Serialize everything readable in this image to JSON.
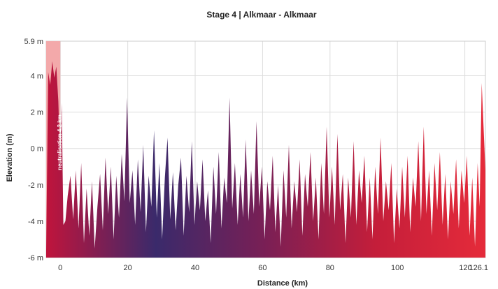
{
  "chart_data": {
    "type": "area",
    "title": "Stage 4 | Alkmaar - Alkmaar",
    "xlabel": "Distance (km)",
    "ylabel": "Elevation (m)",
    "xlim": [
      -4.2,
      126.1
    ],
    "ylim": [
      -6,
      5.9
    ],
    "x_ticks": [
      {
        "value": 0,
        "label": "0"
      },
      {
        "value": 20,
        "label": "20"
      },
      {
        "value": 40,
        "label": "40"
      },
      {
        "value": 60,
        "label": "60"
      },
      {
        "value": 80,
        "label": "80"
      },
      {
        "value": 100,
        "label": "100"
      },
      {
        "value": 120,
        "label": "120"
      },
      {
        "value": 126.1,
        "label": "126.1"
      }
    ],
    "y_ticks": [
      {
        "value": -6,
        "label": "-6 m"
      },
      {
        "value": -4,
        "label": "-4 m"
      },
      {
        "value": -2,
        "label": "-2 m"
      },
      {
        "value": 0,
        "label": "0 m"
      },
      {
        "value": 2,
        "label": "2 m"
      },
      {
        "value": 4,
        "label": "4 m"
      },
      {
        "value": 5.9,
        "label": "5.9 m"
      }
    ],
    "grid": true,
    "neutral_zone": {
      "x_start": -4.2,
      "x_end": 0,
      "label": "neutralisation 4.2 km"
    },
    "gradient_colors": [
      "#c0143c",
      "#3a2a6b",
      "#7a1f55",
      "#c41e3a",
      "#e52b3a"
    ],
    "neutral_color": "#f3a9aa",
    "profile": [
      [
        -4.2,
        -5.6
      ],
      [
        -3.6,
        4.2
      ],
      [
        -3.0,
        3.5
      ],
      [
        -2.4,
        4.8
      ],
      [
        -1.8,
        3.9
      ],
      [
        -1.2,
        4.5
      ],
      [
        -0.6,
        2.6
      ],
      [
        0.0,
        -1.0
      ],
      [
        0.4,
        2.5
      ],
      [
        0.9,
        -4.2
      ],
      [
        1.5,
        -4.0
      ],
      [
        2.2,
        -2.6
      ],
      [
        3.0,
        -1.5
      ],
      [
        3.8,
        -3.9
      ],
      [
        4.6,
        -1.2
      ],
      [
        5.4,
        -4.4
      ],
      [
        6.2,
        -0.8
      ],
      [
        7.0,
        -5.2
      ],
      [
        7.8,
        -2.2
      ],
      [
        8.6,
        -4.8
      ],
      [
        9.4,
        -1.8
      ],
      [
        10.2,
        -5.5
      ],
      [
        11.0,
        -3.2
      ],
      [
        11.8,
        -1.4
      ],
      [
        12.6,
        -4.5
      ],
      [
        13.4,
        -0.5
      ],
      [
        14.2,
        -3.6
      ],
      [
        15.0,
        -1.0
      ],
      [
        15.8,
        -5.0
      ],
      [
        16.6,
        -1.5
      ],
      [
        17.4,
        -3.8
      ],
      [
        18.2,
        -0.3
      ],
      [
        19.0,
        -2.9
      ],
      [
        19.8,
        2.8
      ],
      [
        20.6,
        -3.0
      ],
      [
        21.4,
        -1.2
      ],
      [
        22.2,
        -4.2
      ],
      [
        23.0,
        -0.6
      ],
      [
        23.8,
        -3.5
      ],
      [
        24.6,
        0.2
      ],
      [
        25.4,
        -4.6
      ],
      [
        26.2,
        -1.5
      ],
      [
        27.0,
        -3.2
      ],
      [
        27.8,
        1.0
      ],
      [
        28.6,
        -3.8
      ],
      [
        29.4,
        -0.8
      ],
      [
        30.2,
        -5.0
      ],
      [
        31.0,
        -1.6
      ],
      [
        31.8,
        0.6
      ],
      [
        32.6,
        -3.9
      ],
      [
        33.4,
        -1.3
      ],
      [
        34.2,
        -4.5
      ],
      [
        35.0,
        -2.0
      ],
      [
        35.8,
        -0.5
      ],
      [
        36.6,
        -4.8
      ],
      [
        37.4,
        -1.5
      ],
      [
        38.2,
        -3.5
      ],
      [
        39.0,
        0.4
      ],
      [
        39.8,
        -4.2
      ],
      [
        40.6,
        -1.8
      ],
      [
        41.4,
        -3.4
      ],
      [
        42.2,
        -0.6
      ],
      [
        43.0,
        -4.0
      ],
      [
        43.8,
        -2.3
      ],
      [
        44.6,
        -5.2
      ],
      [
        45.4,
        -1.0
      ],
      [
        46.2,
        -3.6
      ],
      [
        47.0,
        -0.2
      ],
      [
        47.8,
        -4.4
      ],
      [
        48.6,
        -1.6
      ],
      [
        49.4,
        -3.0
      ],
      [
        50.2,
        2.8
      ],
      [
        51.0,
        -3.3
      ],
      [
        51.8,
        -0.8
      ],
      [
        52.6,
        -4.2
      ],
      [
        53.4,
        -1.4
      ],
      [
        54.2,
        -3.8
      ],
      [
        55.0,
        0.5
      ],
      [
        55.8,
        -4.0
      ],
      [
        56.6,
        -1.2
      ],
      [
        57.4,
        -3.6
      ],
      [
        58.2,
        1.5
      ],
      [
        59.0,
        -3.2
      ],
      [
        59.8,
        -1.0
      ],
      [
        60.6,
        -5.0
      ],
      [
        61.4,
        -1.8
      ],
      [
        62.2,
        -3.4
      ],
      [
        63.0,
        -0.4
      ],
      [
        63.8,
        -4.6
      ],
      [
        64.6,
        -2.0
      ],
      [
        65.4,
        -5.4
      ],
      [
        66.2,
        -1.2
      ],
      [
        67.0,
        -3.8
      ],
      [
        67.8,
        0.2
      ],
      [
        68.6,
        -4.4
      ],
      [
        69.4,
        -1.8
      ],
      [
        70.2,
        -3.5
      ],
      [
        71.0,
        -0.6
      ],
      [
        71.8,
        -4.8
      ],
      [
        72.6,
        -1.4
      ],
      [
        73.4,
        -3.2
      ],
      [
        74.2,
        -0.2
      ],
      [
        75.0,
        -4.0
      ],
      [
        75.8,
        -1.6
      ],
      [
        76.6,
        -5.0
      ],
      [
        77.4,
        -0.8
      ],
      [
        78.2,
        -3.6
      ],
      [
        79.0,
        1.2
      ],
      [
        79.8,
        -3.8
      ],
      [
        80.6,
        -1.0
      ],
      [
        81.4,
        -4.2
      ],
      [
        82.2,
        0.8
      ],
      [
        83.0,
        -3.4
      ],
      [
        83.8,
        -1.4
      ],
      [
        84.6,
        -5.2
      ],
      [
        85.4,
        -1.6
      ],
      [
        86.2,
        -3.8
      ],
      [
        87.0,
        0.4
      ],
      [
        87.8,
        -4.2
      ],
      [
        88.6,
        -1.2
      ],
      [
        89.4,
        -3.0
      ],
      [
        90.2,
        -0.4
      ],
      [
        91.0,
        -4.6
      ],
      [
        91.8,
        -1.6
      ],
      [
        92.6,
        -5.0
      ],
      [
        93.4,
        -1.0
      ],
      [
        94.2,
        -3.6
      ],
      [
        95.0,
        0.6
      ],
      [
        95.8,
        -4.0
      ],
      [
        96.6,
        -1.8
      ],
      [
        97.4,
        -3.4
      ],
      [
        98.2,
        -0.8
      ],
      [
        99.0,
        -5.2
      ],
      [
        99.8,
        -2.2
      ],
      [
        100.6,
        -4.4
      ],
      [
        101.4,
        -1.0
      ],
      [
        102.2,
        -3.8
      ],
      [
        103.0,
        -0.4
      ],
      [
        103.8,
        -4.6
      ],
      [
        104.6,
        -1.6
      ],
      [
        105.4,
        -3.2
      ],
      [
        106.2,
        0.4
      ],
      [
        107.0,
        -4.0
      ],
      [
        107.8,
        1.2
      ],
      [
        108.6,
        -3.6
      ],
      [
        109.4,
        -1.2
      ],
      [
        110.2,
        -4.8
      ],
      [
        111.0,
        -0.8
      ],
      [
        111.8,
        -3.4
      ],
      [
        112.6,
        -0.2
      ],
      [
        113.4,
        -4.2
      ],
      [
        114.2,
        -1.4
      ],
      [
        115.0,
        -5.0
      ],
      [
        115.8,
        -1.8
      ],
      [
        116.6,
        -3.6
      ],
      [
        117.4,
        -0.6
      ],
      [
        118.2,
        -4.4
      ],
      [
        119.0,
        -1.2
      ],
      [
        119.8,
        -3.0
      ],
      [
        120.6,
        -0.4
      ],
      [
        121.4,
        -4.8
      ],
      [
        122.2,
        -1.6
      ],
      [
        123.0,
        -5.4
      ],
      [
        123.8,
        -0.8
      ],
      [
        124.4,
        -3.2
      ],
      [
        125.0,
        3.6
      ],
      [
        125.5,
        1.4
      ],
      [
        126.1,
        -1.2
      ]
    ]
  }
}
